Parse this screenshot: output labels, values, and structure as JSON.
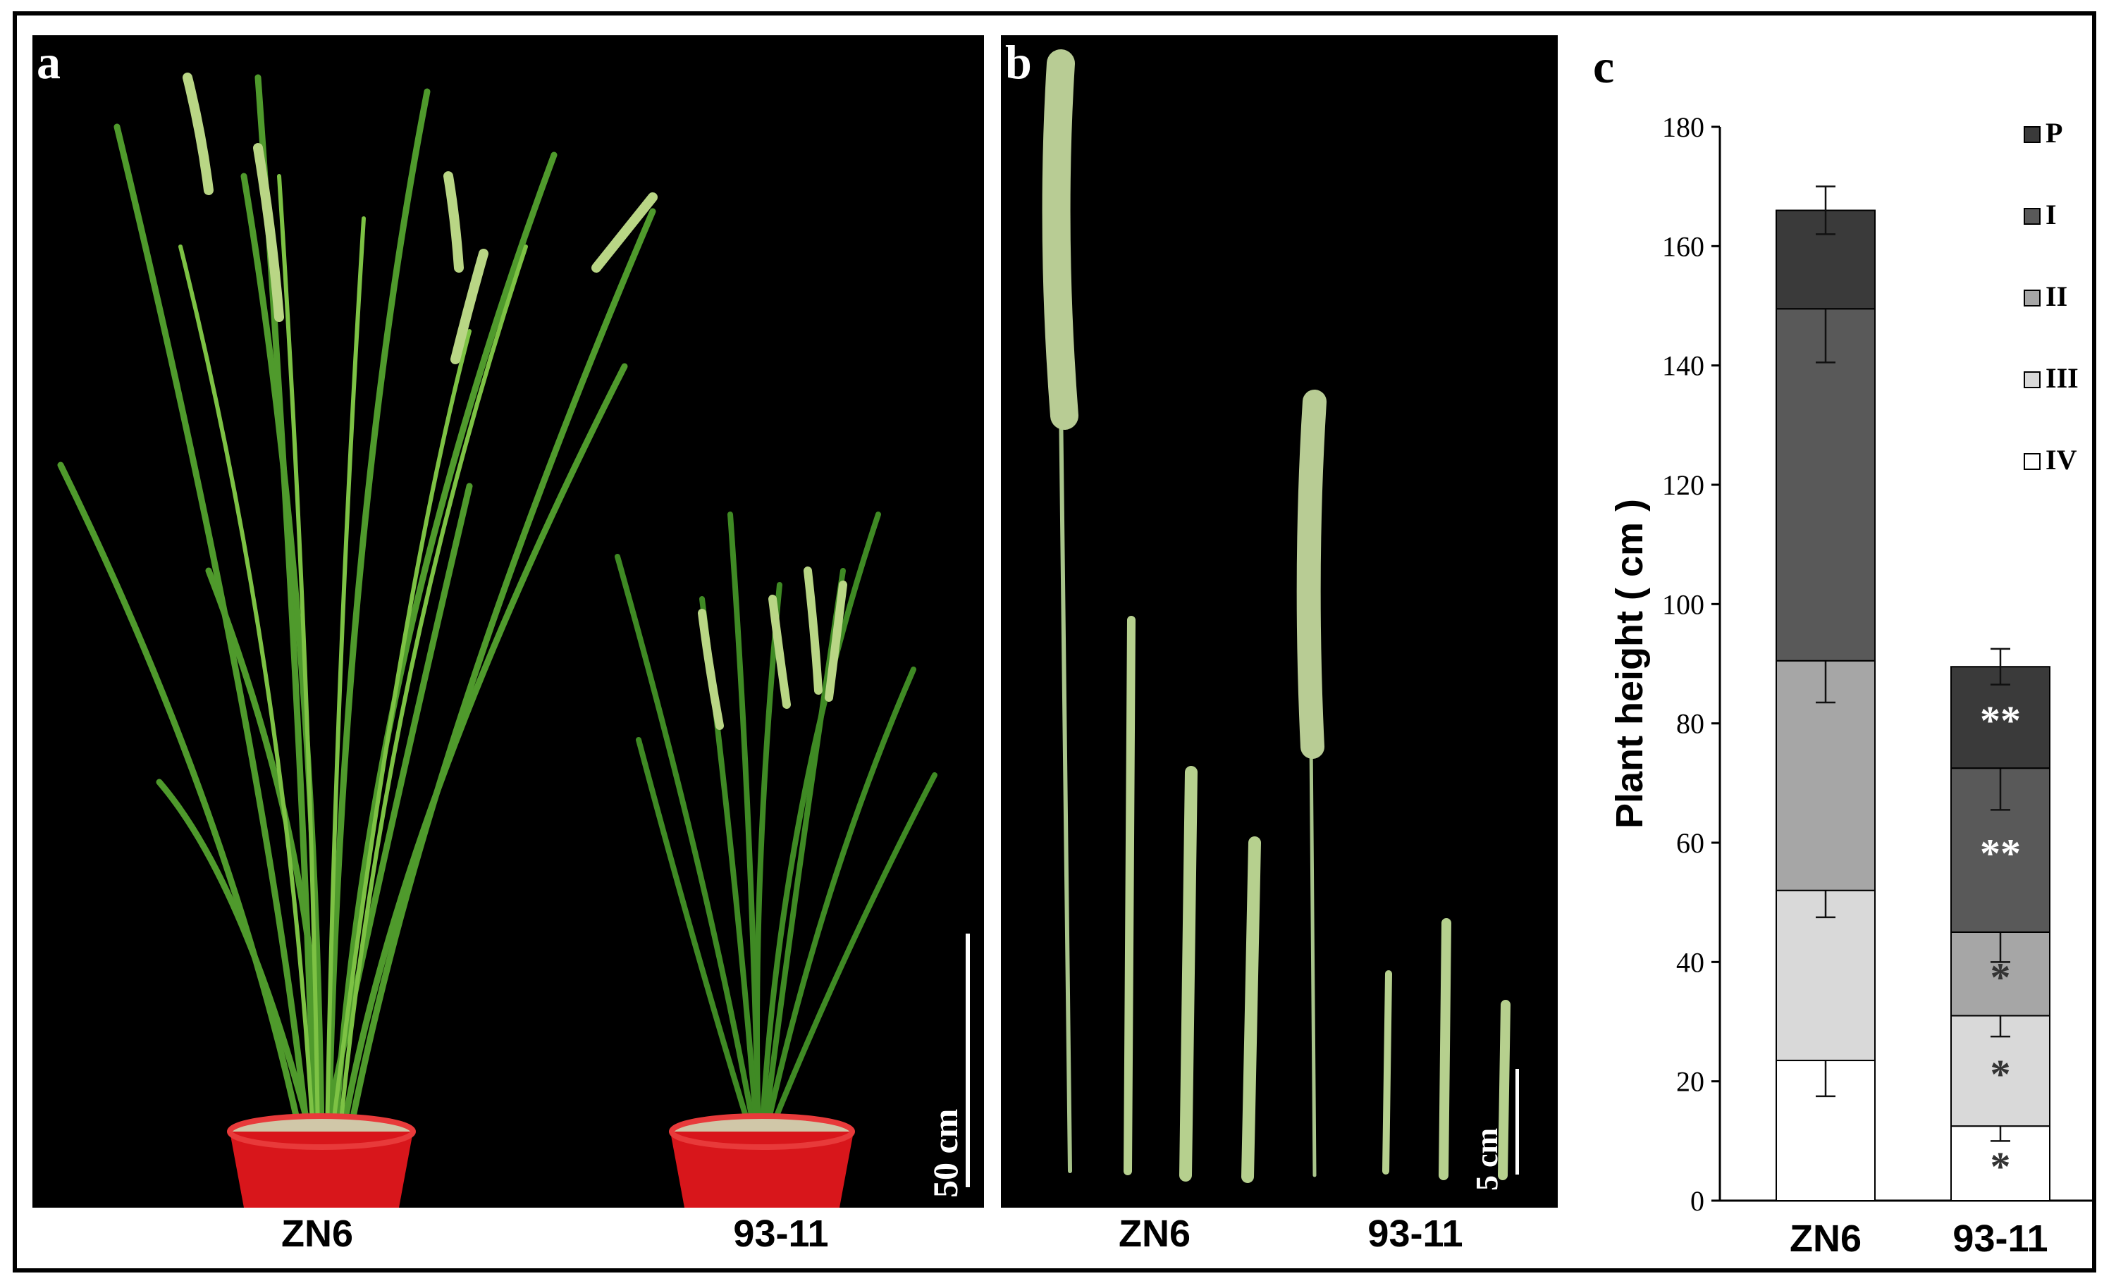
{
  "figure": {
    "panel_a": {
      "label": "a",
      "scale_bar": "50 cm",
      "genotypes": [
        "ZN6",
        "93-11"
      ]
    },
    "panel_b": {
      "label": "b",
      "scale_bar": "5 cm",
      "genotypes": [
        "ZN6",
        "93-11"
      ]
    },
    "panel_c": {
      "label": "c"
    }
  },
  "chart_data": {
    "type": "bar",
    "stacked": true,
    "title": "",
    "ylabel": "Plant height ( cm )",
    "xlabel": "",
    "categories": [
      "ZN6",
      "93-11"
    ],
    "ylim": [
      0,
      180
    ],
    "yticks": [
      0,
      20,
      40,
      60,
      80,
      100,
      120,
      140,
      160,
      180
    ],
    "legend_position": "top-right",
    "series": [
      {
        "name": "IV",
        "values": [
          23.5,
          12.5
        ],
        "error": [
          6,
          2.5
        ],
        "significance": [
          "",
          "*"
        ],
        "color": "#ffffff"
      },
      {
        "name": "III",
        "values": [
          28.5,
          18.5
        ],
        "error": [
          4.5,
          3.5
        ],
        "significance": [
          "",
          "*"
        ],
        "color": "#d9d9d9"
      },
      {
        "name": "II",
        "values": [
          38.5,
          14
        ],
        "error": [
          7,
          5
        ],
        "significance": [
          "",
          "*"
        ],
        "color": "#a6a6a6"
      },
      {
        "name": "I",
        "values": [
          59,
          27.5
        ],
        "error": [
          9,
          7
        ],
        "significance": [
          "",
          "**"
        ],
        "color": "#595959"
      },
      {
        "name": "P",
        "values": [
          16.5,
          17
        ],
        "error": [
          4,
          3
        ],
        "significance": [
          "",
          "**"
        ],
        "color": "#3a3a3a"
      }
    ],
    "grid": false
  }
}
